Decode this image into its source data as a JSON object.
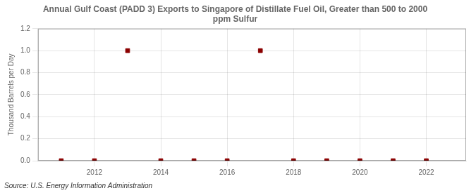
{
  "chart_data": {
    "type": "scatter",
    "title": "Annual Gulf Coast (PADD 3) Exports to Singapore of Distillate Fuel Oil, Greater than 500 to 2000\nppm Sulfur",
    "ylabel": "Thousand Barrels per Day",
    "annotation": "Source: U.S. Energy Information Administration",
    "x": [
      2011,
      2012,
      2013,
      2014,
      2015,
      2016,
      2017,
      2018,
      2019,
      2020,
      2021,
      2022
    ],
    "values": [
      0.0,
      0.0,
      1.0,
      0.0,
      0.0,
      0.0,
      1.0,
      0.0,
      0.0,
      0.0,
      0.0,
      0.0
    ],
    "color": "#8b0000",
    "marker": "square",
    "xlim": [
      2010.3,
      2023.2
    ],
    "xticks": [
      2012,
      2014,
      2016,
      2018,
      2020,
      2022
    ],
    "ylim": [
      0.0,
      1.2
    ],
    "yticks": [
      {
        "value": 0.0,
        "label": "0.0"
      },
      {
        "value": 0.2,
        "label": "0.2"
      },
      {
        "value": 0.4,
        "label": "0.4"
      },
      {
        "value": 0.6,
        "label": "0.6"
      },
      {
        "value": 0.8,
        "label": "0.8"
      },
      {
        "value": 1.0,
        "label": "1.0"
      },
      {
        "value": 1.2,
        "label": "1.2"
      }
    ],
    "grid": true
  }
}
